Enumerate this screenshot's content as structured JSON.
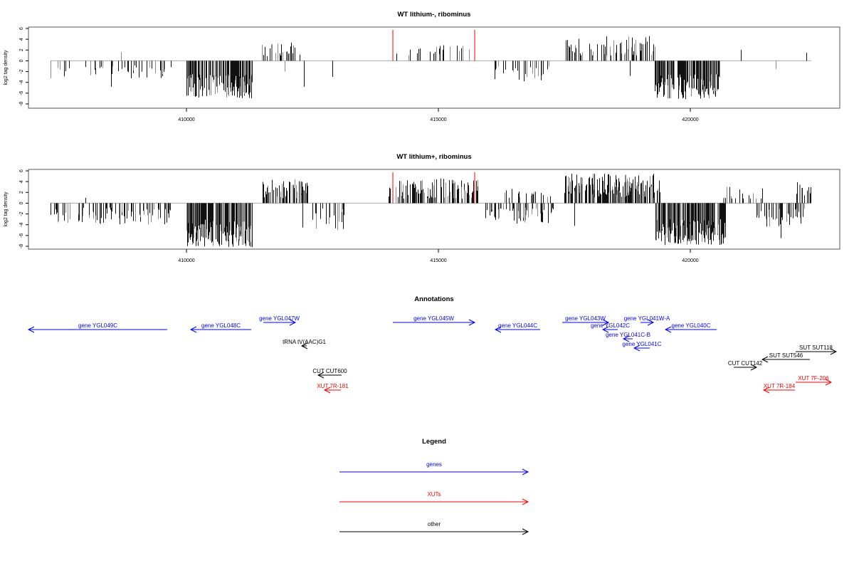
{
  "chart_data": [
    {
      "type": "bar",
      "title": "WT lithium-, ribominus",
      "ylabel": "log2 tag density",
      "xlim": [
        406864,
        422966
      ],
      "ylim": [
        -8,
        6
      ],
      "xticks": [
        410000,
        415000,
        420000
      ],
      "yticks": [
        6,
        4,
        2,
        0,
        -2,
        -4,
        -6,
        -8
      ],
      "marker_lines": [
        414096,
        415720
      ],
      "marker_color": "#ff0000",
      "segments": [
        {
          "start": 407300,
          "end": 409700,
          "n": 45,
          "min": -3.5,
          "max": -0.8
        },
        {
          "start": 410000,
          "end": 411300,
          "n": 160,
          "min": -7,
          "max": -2.5
        },
        {
          "start": 411500,
          "end": 412250,
          "n": 28,
          "min": 0.8,
          "max": 3.5
        },
        {
          "start": 414100,
          "end": 415700,
          "n": 22,
          "min": 1,
          "max": 3.3
        },
        {
          "start": 416000,
          "end": 417200,
          "n": 26,
          "min": -4,
          "max": -1
        },
        {
          "start": 417500,
          "end": 419300,
          "n": 75,
          "min": 1,
          "max": 4.6
        },
        {
          "start": 419300,
          "end": 420600,
          "n": 160,
          "min": -7.2,
          "max": -2.5
        }
      ],
      "bars": [
        [
          408700,
          1.6
        ],
        [
          408500,
          -4.8
        ],
        [
          412330,
          -4.8
        ],
        [
          411950,
          -2
        ],
        [
          412900,
          -3
        ],
        [
          421000,
          2
        ],
        [
          421700,
          -1.5
        ],
        [
          422300,
          1.5
        ],
        [
          418800,
          -2.8
        ]
      ]
    },
    {
      "type": "bar",
      "title": "WT lithium+, ribominus",
      "ylabel": "log2 tag density",
      "xlim": [
        406864,
        422966
      ],
      "ylim": [
        -8,
        6
      ],
      "xticks": [
        410000,
        415000,
        420000
      ],
      "yticks": [
        6,
        4,
        2,
        0,
        -2,
        -4,
        -6,
        -8
      ],
      "marker_lines": [
        414096,
        415720
      ],
      "marker_color": "#ff0000",
      "segments": [
        {
          "start": 407300,
          "end": 409700,
          "n": 90,
          "min": -4,
          "max": -0.8
        },
        {
          "start": 410000,
          "end": 411300,
          "n": 220,
          "min": -8.2,
          "max": -3
        },
        {
          "start": 411500,
          "end": 412400,
          "n": 60,
          "min": 0.8,
          "max": 4.5
        },
        {
          "start": 412500,
          "end": 413200,
          "n": 20,
          "min": -5,
          "max": -1
        },
        {
          "start": 414000,
          "end": 415800,
          "n": 110,
          "min": 0.8,
          "max": 4.7
        },
        {
          "start": 415900,
          "end": 417300,
          "n": 60,
          "min": -3.8,
          "max": -0.8
        },
        {
          "start": 416300,
          "end": 417300,
          "n": 20,
          "min": 1,
          "max": 3
        },
        {
          "start": 417500,
          "end": 419400,
          "n": 200,
          "min": 1,
          "max": 5.5
        },
        {
          "start": 419300,
          "end": 420700,
          "n": 230,
          "min": -7.8,
          "max": -3
        },
        {
          "start": 420600,
          "end": 421500,
          "n": 20,
          "min": 0.8,
          "max": 3.5
        },
        {
          "start": 421300,
          "end": 422300,
          "n": 40,
          "min": -4.5,
          "max": -1
        },
        {
          "start": 422100,
          "end": 422400,
          "n": 14,
          "min": 1,
          "max": 4
        }
      ],
      "bars": [
        [
          408000,
          1
        ],
        [
          412300,
          -4.5
        ],
        [
          413000,
          -5
        ],
        [
          417700,
          -4.2
        ],
        [
          421800,
          -6.5
        ]
      ]
    }
  ],
  "annotations": {
    "title": "Annotations",
    "features": [
      {
        "label": "gene YGL049C",
        "type": "genes",
        "start": 406864,
        "end": 409619,
        "strand": "-"
      },
      {
        "label": "gene YGL048C",
        "type": "genes",
        "start": 410085,
        "end": 411285,
        "strand": "-"
      },
      {
        "label": "gene YGL047W",
        "type": "genes",
        "start": 411525,
        "end": 412161,
        "strand": "+"
      },
      {
        "label": "gene YGL045W",
        "type": "genes",
        "start": 414096,
        "end": 415720,
        "strand": "+"
      },
      {
        "label": "gene YGL044C",
        "type": "genes",
        "start": 416130,
        "end": 417020,
        "strand": "-"
      },
      {
        "label": "gene YGL043W",
        "type": "genes",
        "start": 417458,
        "end": 418376,
        "strand": "+"
      },
      {
        "label": "gene YGL042C",
        "type": "genes",
        "start": 418263,
        "end": 418559,
        "strand": "-"
      },
      {
        "label": "gene YGL041C-B",
        "type": "genes",
        "start": 418672,
        "end": 418856,
        "strand": "-"
      },
      {
        "label": "gene YGL041C",
        "type": "genes",
        "start": 418884,
        "end": 419195,
        "strand": "-"
      },
      {
        "label": "gene YGL041W-A",
        "type": "genes",
        "start": 419011,
        "end": 419266,
        "strand": "+"
      },
      {
        "label": "gene YGL040C",
        "type": "genes",
        "start": 419506,
        "end": 420523,
        "strand": "-"
      },
      {
        "label": "tRNA tV(AAC)G1",
        "type": "other",
        "start": 412288,
        "end": 412387,
        "strand": "-"
      },
      {
        "label": "CUT CUT600",
        "type": "other",
        "start": 412613,
        "end": 413079,
        "strand": "-"
      },
      {
        "label": "XUT 7R-181",
        "type": "XUTs",
        "start": 412740,
        "end": 413065,
        "strand": "-"
      },
      {
        "label": "SUT SUT118",
        "type": "other",
        "start": 422090,
        "end": 422895,
        "strand": "+"
      },
      {
        "label": "SUT SUT546",
        "type": "other",
        "start": 421427,
        "end": 422373,
        "strand": "-"
      },
      {
        "label": "CUT CUT142",
        "type": "other",
        "start": 420862,
        "end": 421314,
        "strand": "+"
      },
      {
        "label": "XUT 7F-206",
        "type": "XUTs",
        "start": 422090,
        "end": 422797,
        "strand": "+"
      },
      {
        "label": "XUT 7R-184",
        "type": "XUTs",
        "start": 421455,
        "end": 422076,
        "strand": "-"
      }
    ]
  },
  "legend": {
    "title": "Legend",
    "items": [
      {
        "label": "genes",
        "color": "#0000ff"
      },
      {
        "label": "XUTs",
        "color": "#ff0000"
      },
      {
        "label": "other",
        "color": "#000000"
      }
    ]
  }
}
